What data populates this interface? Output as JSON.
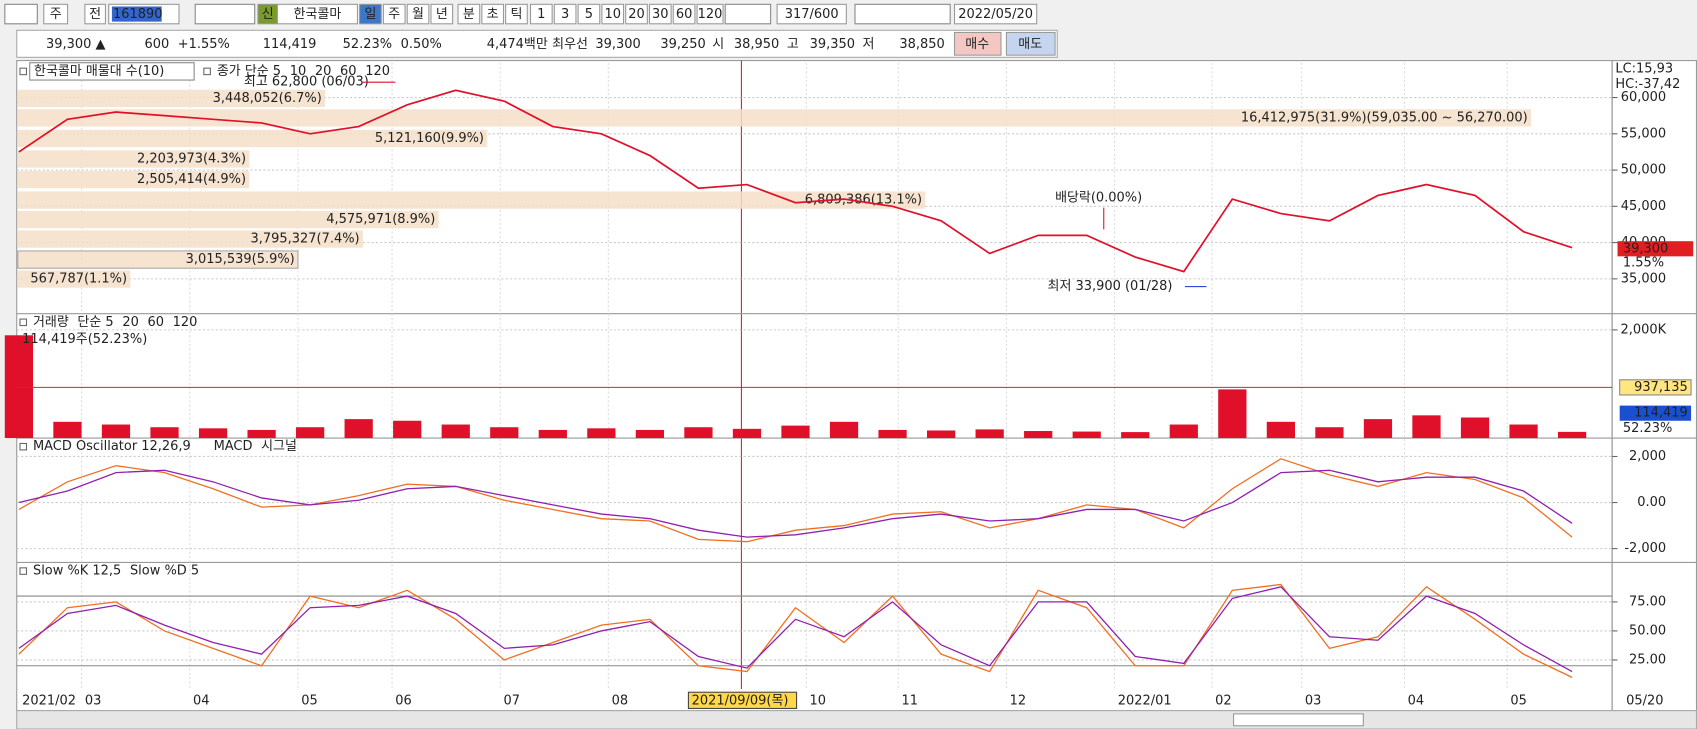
{
  "toolbar": {
    "items": [
      "주",
      "전",
      "161890",
      "신",
      "한국콜마",
      "일",
      "주",
      "월",
      "년",
      "분",
      "초",
      "틱",
      "1",
      "3",
      "5",
      "10",
      "20",
      "30",
      "60",
      "120",
      "317/600",
      "2022/05/20"
    ]
  },
  "quote": {
    "items": [
      "39,300 ▲",
      "600",
      "+1.55%",
      "114,419",
      "52.23%",
      "0.50%",
      "4,474백만",
      "최우선",
      "39,300",
      "39,250",
      "시",
      "38,950",
      "고",
      "39,350",
      "저",
      "38,850",
      "매수",
      "매도"
    ]
  },
  "chart_data": [
    {
      "type": "line",
      "title": "한국콜마 매물대 수(10)",
      "series": [
        {
          "name": "종가 단순 5",
          "color": "#e0102a",
          "values": [
            52500,
            57000,
            58000,
            57500,
            57000,
            56500,
            55000,
            56000,
            59000,
            61000,
            59500,
            56000,
            55000,
            52000,
            47500,
            48000,
            45500,
            46000,
            45000,
            43000,
            38500,
            41000,
            41000,
            38000,
            36000,
            46000,
            44000,
            43000,
            46500,
            48000,
            46500,
            41500,
            39300
          ]
        }
      ],
      "ma_labels": [
        "10",
        "20",
        "60",
        "120"
      ],
      "ylim": [
        30200,
        64800
      ],
      "yticks": [
        {
          "value": 35000,
          "label": "35,000"
        },
        {
          "value": 40000,
          "label": "40,000"
        },
        {
          "value": 45000,
          "label": "45,000"
        },
        {
          "value": 50000,
          "label": "50,000"
        },
        {
          "value": 55000,
          "label": "55,000"
        },
        {
          "value": 60000,
          "label": "60,000"
        }
      ],
      "volume_profile": [
        "16,412,975(31.9%)(59,035.00 ~ 56,270.00)",
        "3,448,052(6.7%)",
        "5,121,160(9.9%)",
        "2,203,973(4.3%)",
        "2,505,414(4.9%)",
        "6,809,386(13.1%)",
        "4,575,971(8.9%)",
        "3,795,327(7.4%)",
        "3,015,539(5.9%)",
        "567,787(1.1%)"
      ],
      "annotations": {
        "high": "최고 62,800 (06/03)",
        "low": "최저 33,900 (01/28)",
        "dividend": "배당락(0.00%)",
        "lc": "LC:15,93",
        "hc": "HC:-37,42",
        "last": "39,300",
        "change": "1.55%"
      }
    },
    {
      "type": "bar",
      "series": [
        {
          "name": "거래량",
          "color": "#e0102a",
          "values": [
            1900,
            300,
            250,
            200,
            180,
            150,
            200,
            350,
            320,
            250,
            200,
            150,
            180,
            150,
            200,
            170,
            230,
            300,
            150,
            140,
            160,
            130,
            120,
            110,
            250,
            900,
            300,
            200,
            350,
            420,
            380,
            250,
            114.419
          ]
        }
      ],
      "ma_labels": [
        "단순 5",
        "20",
        "60",
        "120"
      ],
      "info": "114,419주(52.23%)",
      "ylim": [
        0,
        2300
      ],
      "yticks": [
        {
          "value": 2000,
          "label": "2,000K"
        }
      ],
      "ref_line": {
        "value": 937.135,
        "label": "937,135"
      },
      "last_labels": [
        "114,419",
        "52.23%"
      ]
    },
    {
      "type": "line",
      "title": "MACD Oscillator 12,26,9",
      "series": [
        {
          "name": "MACD",
          "color": "#f07020",
          "values": [
            -300,
            900,
            1600,
            1300,
            600,
            -200,
            -100,
            300,
            800,
            700,
            100,
            -300,
            -700,
            -800,
            -1600,
            -1700,
            -1200,
            -1000,
            -500,
            -400,
            -1100,
            -700,
            -100,
            -300,
            -1100,
            600,
            1900,
            1200,
            700,
            1300,
            1000,
            200,
            -1500
          ]
        },
        {
          "name": "시그널",
          "color": "#9020b0",
          "values": [
            0,
            500,
            1300,
            1400,
            900,
            200,
            -100,
            100,
            600,
            700,
            300,
            -100,
            -500,
            -700,
            -1200,
            -1500,
            -1400,
            -1100,
            -700,
            -500,
            -800,
            -700,
            -300,
            -300,
            -800,
            0,
            1300,
            1400,
            900,
            1100,
            1100,
            500,
            -900
          ]
        }
      ],
      "ylim": [
        -2600,
        2800
      ],
      "yticks": [
        {
          "value": -2000,
          "label": "-2,000"
        },
        {
          "value": 0,
          "label": "0.00"
        },
        {
          "value": 2000,
          "label": "2,000"
        }
      ]
    },
    {
      "type": "line",
      "series": [
        {
          "name": "Slow %K 12,5",
          "color": "#f07020",
          "values": [
            30,
            70,
            75,
            50,
            35,
            20,
            80,
            70,
            85,
            60,
            25,
            40,
            55,
            60,
            20,
            15,
            70,
            40,
            80,
            30,
            15,
            85,
            70,
            20,
            20,
            85,
            90,
            35,
            45,
            88,
            60,
            30,
            10
          ]
        },
        {
          "name": "Slow %D 5",
          "color": "#9020b0",
          "values": [
            35,
            65,
            72,
            55,
            40,
            30,
            70,
            72,
            80,
            65,
            35,
            38,
            50,
            58,
            28,
            18,
            60,
            45,
            75,
            38,
            20,
            75,
            75,
            28,
            22,
            78,
            88,
            45,
            42,
            80,
            65,
            38,
            15
          ]
        }
      ],
      "ylim": [
        0,
        109
      ],
      "yticks": [
        {
          "value": 25,
          "label": "25.00"
        },
        {
          "value": 50,
          "label": "50.00"
        },
        {
          "value": 75,
          "label": "75.00"
        }
      ],
      "ref_lines": [
        80,
        20
      ]
    }
  ],
  "date_axis": {
    "labels": [
      "2021/02",
      "03",
      "04",
      "05",
      "06",
      "07",
      "08",
      "2021/09/09(목)",
      "10",
      "11",
      "12",
      "2022/01",
      "02",
      "03",
      "04",
      "05",
      "05/20"
    ]
  }
}
